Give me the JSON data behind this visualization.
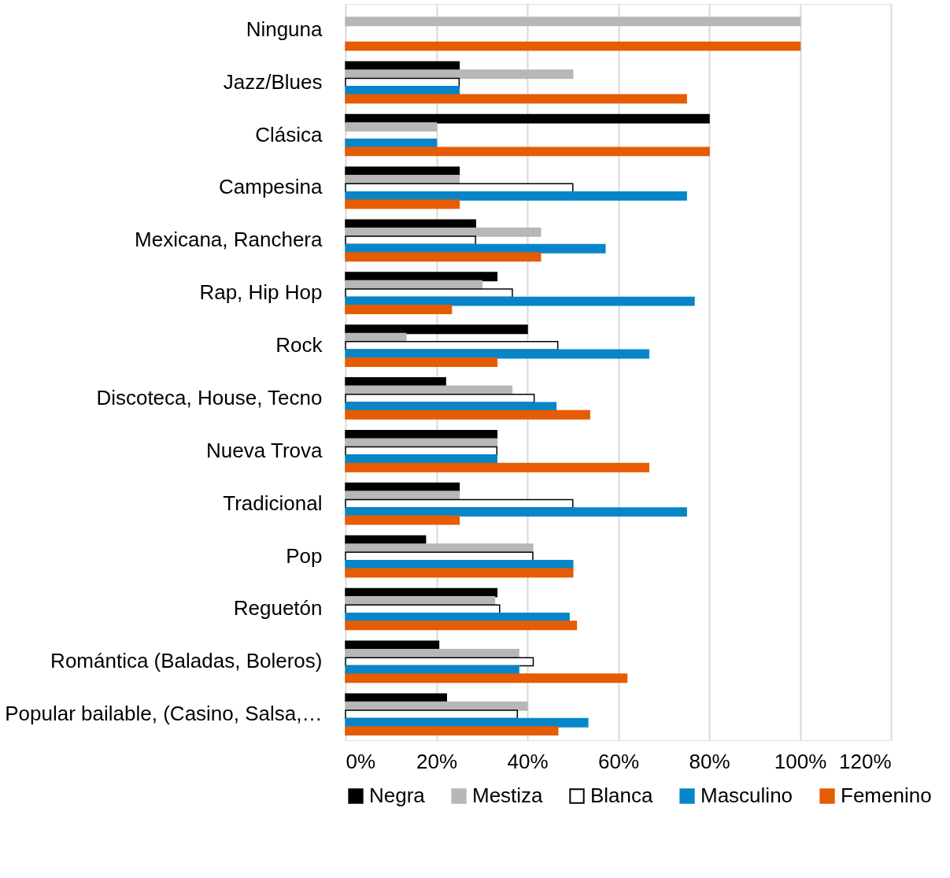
{
  "chart_data": {
    "type": "bar",
    "orientation": "horizontal",
    "categories": [
      "Ninguna",
      "Jazz/Blues",
      "Clásica",
      "Campesina",
      "Mexicana, Ranchera",
      "Rap, Hip Hop",
      "Rock",
      "Discoteca, House, Tecno",
      "Nueva Trova",
      "Tradicional",
      "Pop",
      "Reguetón",
      "Romántica (Baladas, Boleros)",
      "Popular bailable, (Casino, Salsa,…"
    ],
    "series": [
      {
        "name": "Negra",
        "color": "#000000",
        "values": [
          null,
          25,
          80,
          25,
          28.6,
          33.3,
          40,
          22,
          33.3,
          25,
          17.6,
          33.3,
          20.5,
          22.2
        ]
      },
      {
        "name": "Mestiza",
        "color": "#b7b7b7",
        "values": [
          100,
          50,
          20,
          25,
          42.9,
          30,
          13.3,
          36.6,
          33.3,
          25,
          41.2,
          32.8,
          38.1,
          40
        ]
      },
      {
        "name": "Blanca",
        "color": "#ffffff",
        "values": [
          null,
          25,
          null,
          50,
          28.6,
          36.7,
          46.7,
          41.5,
          33.3,
          50,
          41.2,
          33.9,
          41.3,
          37.8
        ]
      },
      {
        "name": "Masculino",
        "color": "#0686c8",
        "values": [
          null,
          25,
          20,
          75,
          57.1,
          76.7,
          66.7,
          46.3,
          33.3,
          75,
          50,
          49.2,
          38.1,
          53.3
        ]
      },
      {
        "name": "Femenino",
        "color": "#e55c03",
        "values": [
          100,
          75,
          80,
          25,
          42.9,
          23.3,
          33.3,
          53.7,
          66.7,
          25,
          50,
          50.8,
          61.9,
          46.7
        ]
      }
    ],
    "xlim": [
      0,
      120
    ],
    "xticks": [
      {
        "value": 0,
        "label": "0%"
      },
      {
        "value": 20,
        "label": "20%"
      },
      {
        "value": 40,
        "label": "40%"
      },
      {
        "value": 60,
        "label": "60%"
      },
      {
        "value": 80,
        "label": "80%"
      },
      {
        "value": 100,
        "label": "100%"
      },
      {
        "value": 120,
        "label": "120%"
      }
    ],
    "grid": "x",
    "legend": "bottom"
  }
}
